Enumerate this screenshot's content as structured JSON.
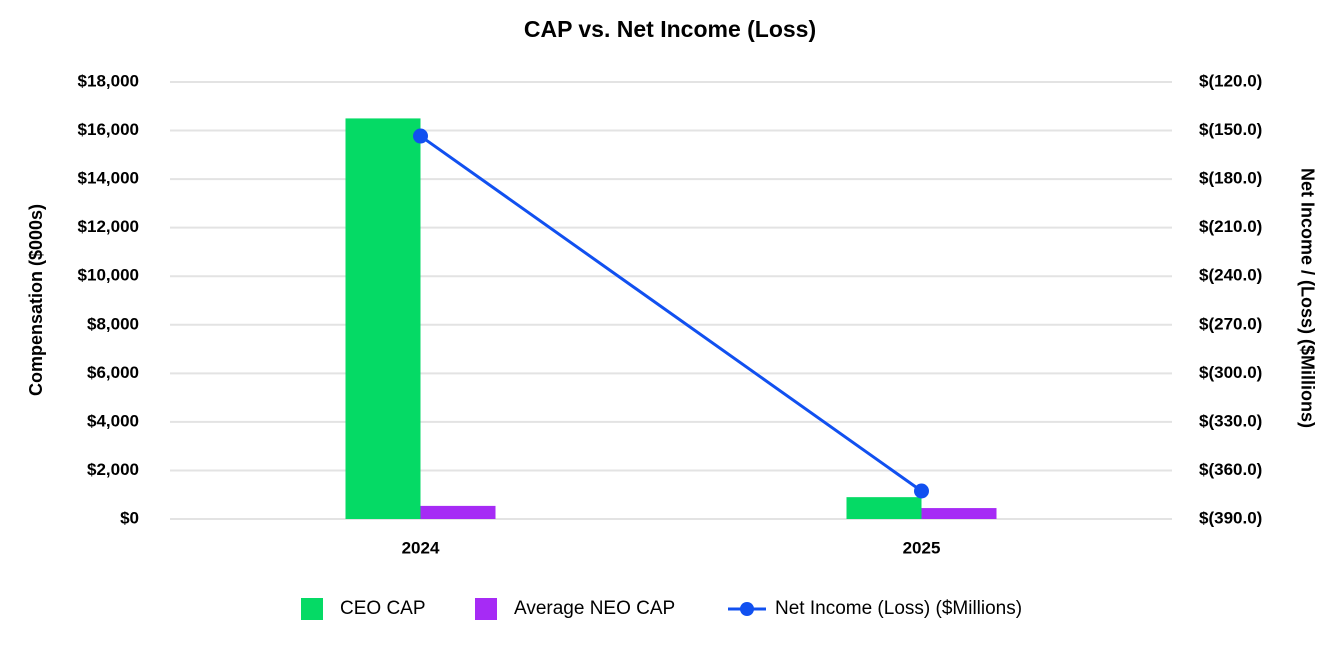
{
  "chart_data": {
    "type": "bar_line",
    "title": "CAP vs. Net Income (Loss)",
    "y_label": "Compensation ($000s)",
    "y2_label": "Net Income / (Loss) ($Millions)",
    "categories": [
      "2024",
      "2025"
    ],
    "series": [
      {
        "name": "CEO CAP",
        "color": "#05da65",
        "type": "bar",
        "axis": "y",
        "values": [
          16500,
          900
        ]
      },
      {
        "name": "Average NEO CAP",
        "color": "#a62bf5",
        "type": "bar",
        "axis": "y",
        "values": [
          540,
          450
        ]
      },
      {
        "name": "Net Income (Loss) ($Millions)",
        "color": "#1150f0",
        "type": "line",
        "axis": "y2",
        "values": [
          -153.4,
          -372.7
        ]
      }
    ],
    "ylim": [
      0,
      18000
    ],
    "yticks": [
      {
        "value": 0,
        "label": "$0"
      },
      {
        "value": 2000,
        "label": "$2,000"
      },
      {
        "value": 4000,
        "label": "$4,000"
      },
      {
        "value": 6000,
        "label": "$6,000"
      },
      {
        "value": 8000,
        "label": "$8,000"
      },
      {
        "value": 10000,
        "label": "$10,000"
      },
      {
        "value": 12000,
        "label": "$12,000"
      },
      {
        "value": 14000,
        "label": "$14,000"
      },
      {
        "value": 16000,
        "label": "$16,000"
      },
      {
        "value": 18000,
        "label": "$18,000"
      }
    ],
    "y2lim": [
      -390,
      -120
    ],
    "y2ticks": [
      {
        "value": -390,
        "label": "$(390.0)"
      },
      {
        "value": -360,
        "label": "$(360.0)"
      },
      {
        "value": -330,
        "label": "$(330.0)"
      },
      {
        "value": -300,
        "label": "$(300.0)"
      },
      {
        "value": -270,
        "label": "$(270.0)"
      },
      {
        "value": -240,
        "label": "$(240.0)"
      },
      {
        "value": -210,
        "label": "$(210.0)"
      },
      {
        "value": -180,
        "label": "$(180.0)"
      },
      {
        "value": -150,
        "label": "$(150.0)"
      },
      {
        "value": -120,
        "label": "$(120.0)"
      }
    ],
    "grid": true,
    "legend": "bottom"
  }
}
